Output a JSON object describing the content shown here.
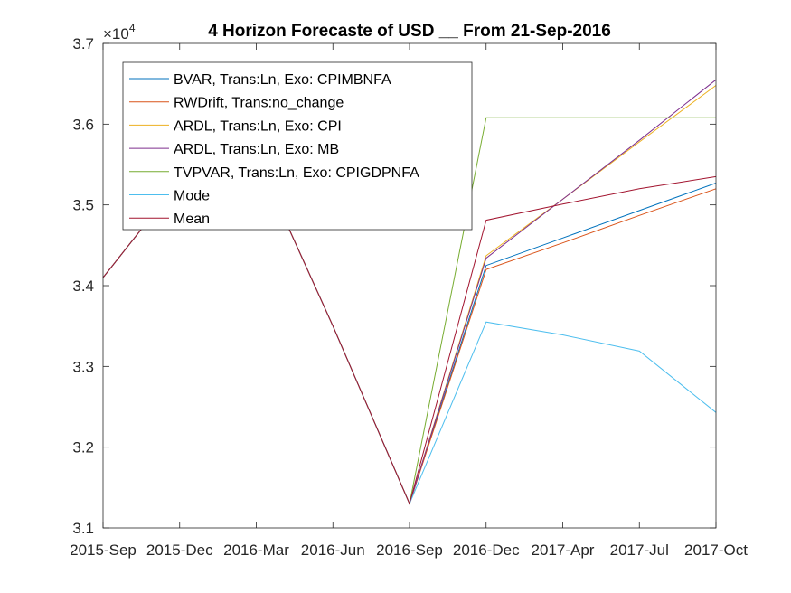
{
  "chart_data": {
    "type": "line",
    "title": "4 Horizon Forecaste of USD __ From 21-Sep-2016",
    "exponent_prefix": "×10",
    "exponent_power": "4",
    "xlabel": "",
    "ylabel": "",
    "x": [
      "2015-Sep",
      "2015-Dec",
      "2016-Mar",
      "2016-Jun",
      "2016-Sep",
      "2016-Dec",
      "2017-Apr",
      "2017-Jul",
      "2017-Oct"
    ],
    "ylim": [
      3.1,
      3.7
    ],
    "yticks": [
      "3.1",
      "3.2",
      "3.3",
      "3.4",
      "3.5",
      "3.6",
      "3.7"
    ],
    "grid": false,
    "legend_position": "top-left",
    "series": [
      {
        "name": "BVAR, Trans:Ln, Exo: CPIMBNFA",
        "color": "#0072BD",
        "values": [
          3.41,
          3.53,
          3.56,
          3.35,
          3.13,
          3.425,
          3.459,
          3.493,
          3.527
        ]
      },
      {
        "name": "RWDrift, Trans:no_change",
        "color": "#D95319",
        "values": [
          3.41,
          3.53,
          3.56,
          3.35,
          3.13,
          3.42,
          3.453,
          3.487,
          3.52
        ]
      },
      {
        "name": "ARDL, Trans:Ln, Exo: CPI",
        "color": "#EDB120",
        "values": [
          3.41,
          3.53,
          3.56,
          3.35,
          3.13,
          3.437,
          3.507,
          3.578,
          3.648
        ]
      },
      {
        "name": "ARDL, Trans:Ln, Exo: MB",
        "color": "#7E2F8E",
        "values": [
          3.41,
          3.53,
          3.56,
          3.35,
          3.13,
          3.434,
          3.507,
          3.58,
          3.655
        ]
      },
      {
        "name": "TVPVAR, Trans:Ln, Exo: CPIGDPNFA",
        "color": "#77AC30",
        "values": [
          3.41,
          3.53,
          3.56,
          3.35,
          3.13,
          3.608,
          3.608,
          3.608,
          3.608
        ]
      },
      {
        "name": "Mode",
        "color": "#4DBEEE",
        "values": [
          3.41,
          3.53,
          3.56,
          3.35,
          3.13,
          3.355,
          3.339,
          3.319,
          3.243
        ]
      },
      {
        "name": "Mean",
        "color": "#A2142F",
        "values": [
          3.41,
          3.53,
          3.56,
          3.35,
          3.13,
          3.481,
          3.501,
          3.52,
          3.535
        ]
      }
    ]
  }
}
